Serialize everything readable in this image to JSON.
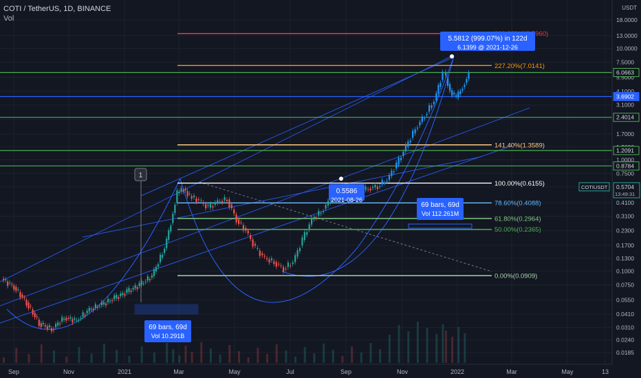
{
  "header": {
    "symbol_line": "COTI / TetherUS, 1D, BINANCE",
    "volume_label": "Vol"
  },
  "chart_data": {
    "type": "candlestick",
    "price_scale": "log",
    "currency_label": "USDT",
    "x_ticks": [
      "Sep",
      "Nov",
      "2021",
      "Mar",
      "May",
      "Jul",
      "Sep",
      "Nov",
      "2022",
      "Mar",
      "May",
      "13"
    ],
    "y_ticks": [
      "18.0000",
      "13.0000",
      "10.0000",
      "7.5000",
      "5.5000",
      "4.1000",
      "3.1000",
      "2.3000",
      "1.7000",
      "1.3000",
      "1.0000",
      "0.7500",
      "0.5700",
      "0.4100",
      "0.3100",
      "0.2300",
      "0.1700",
      "0.1300",
      "0.1000",
      "0.0750",
      "0.0550",
      "0.0410",
      "0.0310",
      "0.0240",
      "0.0185"
    ],
    "y_tick_values": [
      18.0,
      13.0,
      10.0,
      7.5,
      5.5,
      4.1,
      3.1,
      2.3,
      1.7,
      1.3,
      1.0,
      0.75,
      0.57,
      0.41,
      0.31,
      0.23,
      0.17,
      0.13,
      0.1,
      0.075,
      0.055,
      0.041,
      0.031,
      0.024,
      0.0185
    ],
    "fib_levels": [
      {
        "label": "261.80%(13.5960)",
        "value": 13.596,
        "color": "#f23645"
      },
      {
        "label": "227.20%(7.0141)",
        "value": 7.0141,
        "color": "#ff9800"
      },
      {
        "label": "141.40%(1.3589)",
        "value": 1.3589,
        "color": "#ffcc80"
      },
      {
        "label": "100.00%(0.6155)",
        "value": 0.6155,
        "color": "#ffffff"
      },
      {
        "label": "78.60%(0.4088)",
        "value": 0.4088,
        "color": "#64b5f6"
      },
      {
        "label": "61.80%(0.2964)",
        "value": 0.2964,
        "color": "#81c784"
      },
      {
        "label": "50.00%(0.2365)",
        "value": 0.2365,
        "color": "#4caf50"
      },
      {
        "label": "0.00%(0.0909)",
        "value": 0.0909,
        "color": "#a5d6a7"
      }
    ],
    "horizontal_levels": [
      {
        "label": "6.0663",
        "value": 6.0663,
        "color": "#4caf50"
      },
      {
        "label": "3.6902",
        "value": 3.6902,
        "color": "#2962ff"
      },
      {
        "label": "2.4014",
        "value": 2.4014,
        "color": "#4caf50"
      },
      {
        "label": "1.2091",
        "value": 1.2091,
        "color": "#4caf50"
      },
      {
        "label": "0.8784",
        "value": 0.8784,
        "color": "#4caf50"
      }
    ],
    "current_price": {
      "symbol": "COTIUSDT",
      "value": "0.5704",
      "countdown": "13:49:31"
    },
    "annotations": {
      "top_measure_line1": "5.5812 (999.07%) in 122d",
      "top_measure_line2": "6.1399 @ 2021-12-26",
      "mid_label_line1": "0.5586",
      "mid_label_line2": "2021-08-26",
      "right_range_line1": "69 bars, 69d",
      "right_range_line2": "Vol 112.261M",
      "left_range_line1": "69 bars, 69d",
      "left_range_line2": "Vol 10.291B",
      "marker": "1"
    },
    "colors": {
      "up": "#26a69a",
      "down": "#ef5350",
      "highlight": "#2196f3",
      "background": "#131722"
    },
    "price_path": [
      [
        0,
        0.085
      ],
      [
        8,
        0.072
      ],
      [
        16,
        0.052
      ],
      [
        24,
        0.034
      ],
      [
        32,
        0.03
      ],
      [
        40,
        0.038
      ],
      [
        48,
        0.036
      ],
      [
        56,
        0.045
      ],
      [
        64,
        0.05
      ],
      [
        72,
        0.057
      ],
      [
        80,
        0.065
      ],
      [
        88,
        0.075
      ],
      [
        96,
        0.09
      ],
      [
        104,
        0.16
      ],
      [
        108,
        0.27
      ],
      [
        112,
        0.5
      ],
      [
        116,
        0.55
      ],
      [
        120,
        0.47
      ],
      [
        126,
        0.43
      ],
      [
        132,
        0.37
      ],
      [
        138,
        0.42
      ],
      [
        144,
        0.44
      ],
      [
        150,
        0.29
      ],
      [
        156,
        0.23
      ],
      [
        162,
        0.16
      ],
      [
        168,
        0.13
      ],
      [
        174,
        0.12
      ],
      [
        180,
        0.105
      ],
      [
        186,
        0.12
      ],
      [
        192,
        0.19
      ],
      [
        198,
        0.29
      ],
      [
        204,
        0.34
      ],
      [
        210,
        0.44
      ],
      [
        216,
        0.57
      ],
      [
        222,
        0.56
      ],
      [
        228,
        0.52
      ],
      [
        234,
        0.55
      ],
      [
        240,
        0.58
      ],
      [
        246,
        0.66
      ],
      [
        252,
        0.9
      ],
      [
        258,
        1.3
      ],
      [
        264,
        1.9
      ],
      [
        270,
        2.5
      ],
      [
        276,
        3.4
      ],
      [
        280,
        5.2
      ],
      [
        282,
        6.14
      ],
      [
        286,
        4.2
      ],
      [
        290,
        3.6
      ],
      [
        294,
        4.5
      ],
      [
        298,
        5.8
      ]
    ]
  }
}
